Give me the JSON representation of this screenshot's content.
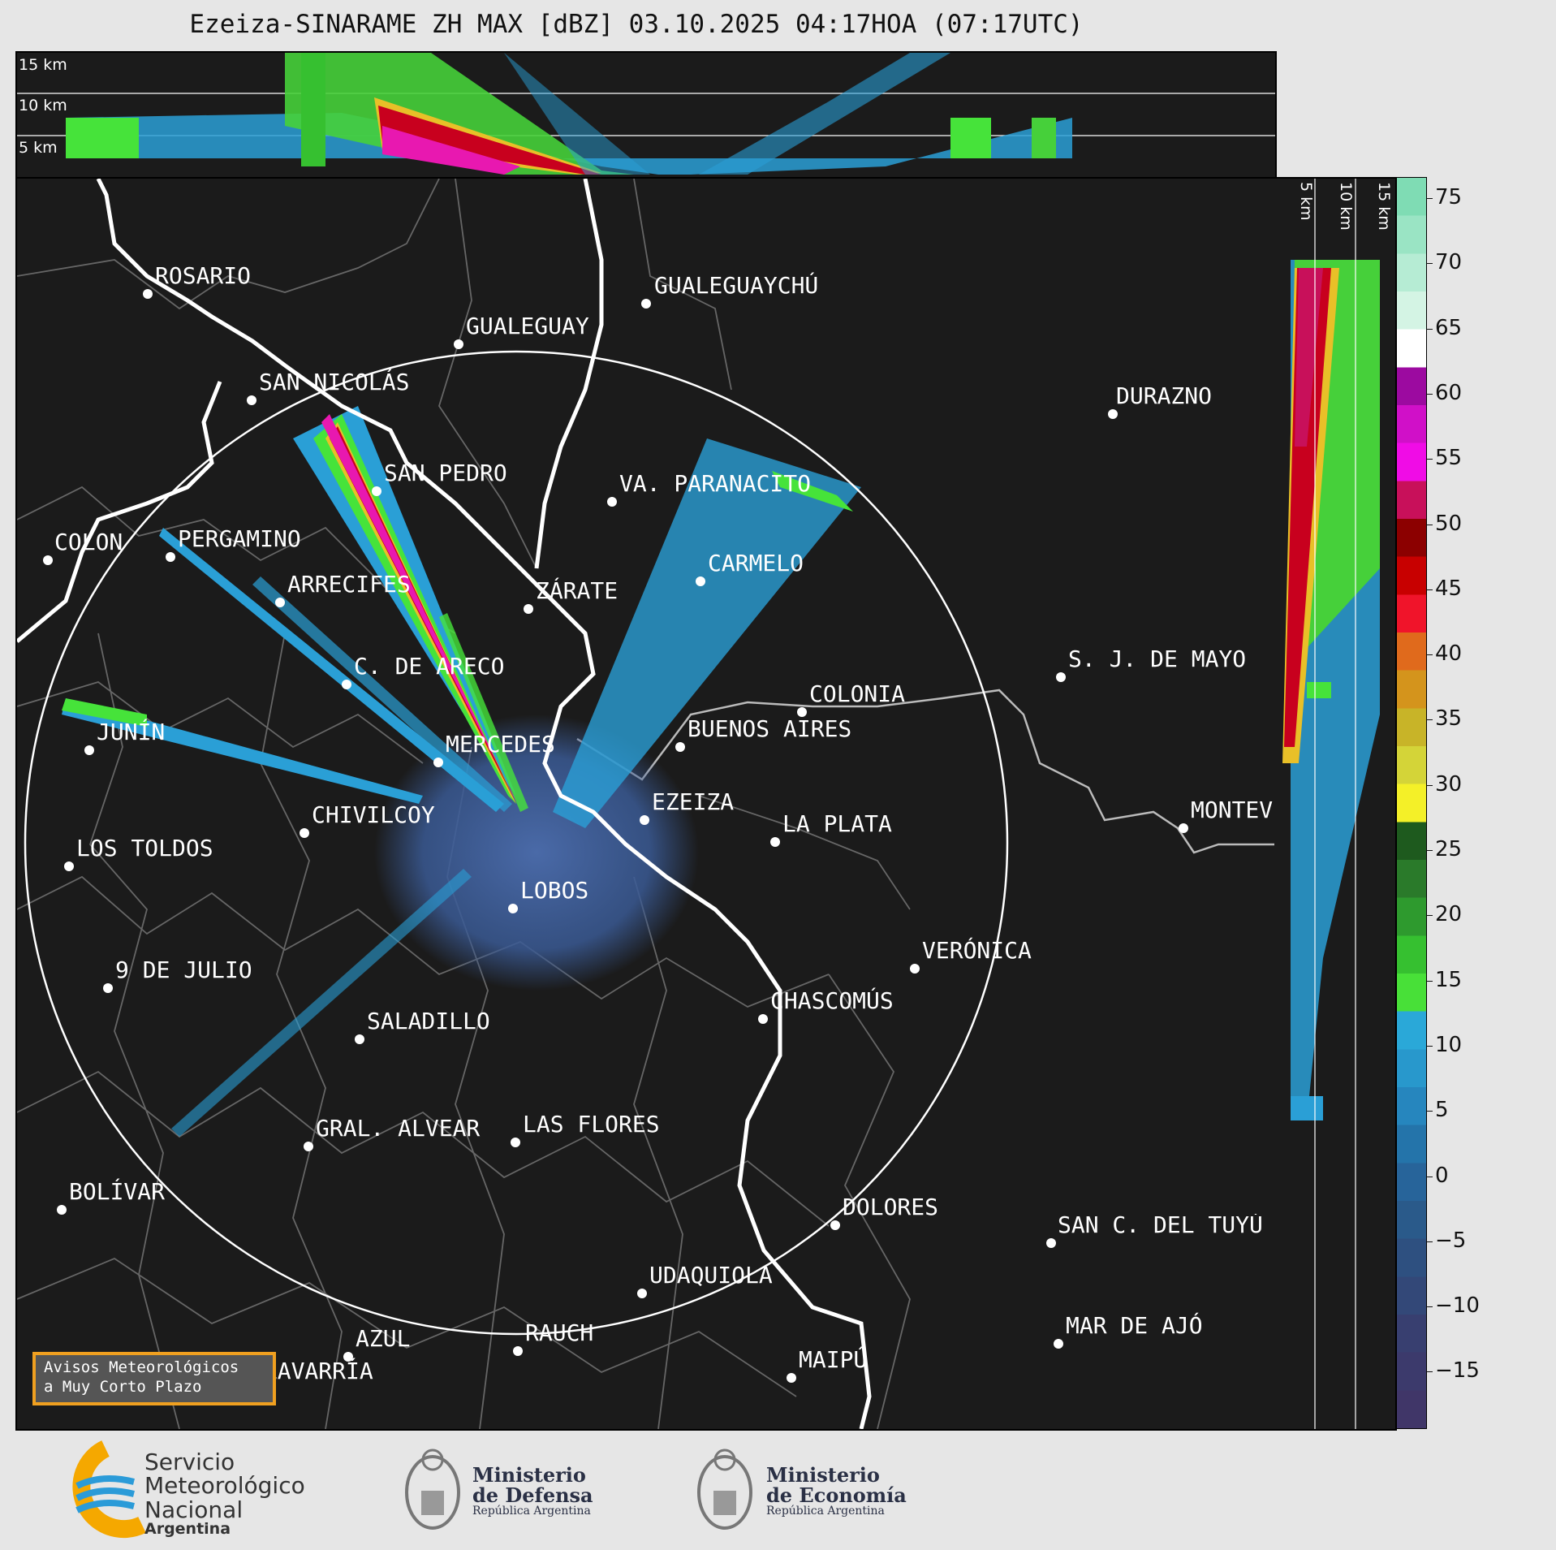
{
  "title": "Ezeiza-SINARAME ZH MAX [dBZ] 03.10.2025 04:17HOA (07:17UTC)",
  "top_panel": {
    "height_labels": [
      "15 km",
      "10 km",
      "5 km"
    ]
  },
  "side_panel": {
    "height_labels": [
      "5 km",
      "10 km",
      "15 km"
    ]
  },
  "colorbar": {
    "ticks": [
      "75",
      "70",
      "65",
      "60",
      "55",
      "50",
      "45",
      "40",
      "35",
      "30",
      "25",
      "20",
      "15",
      "10",
      "5",
      "0",
      "−5",
      "−10",
      "−15"
    ],
    "colors_top_to_bottom": [
      "#7fdcb4",
      "#9ae4c4",
      "#b6ecd4",
      "#d4f4e4",
      "#ffffff",
      "#9c0aa0",
      "#d010c8",
      "#f00ce6",
      "#c8105a",
      "#8c0000",
      "#c80000",
      "#f0142a",
      "#e06a1c",
      "#d4941c",
      "#c8b428",
      "#d4d438",
      "#f4f028",
      "#1e5a1e",
      "#2a7a2a",
      "#2e9a2e",
      "#36c030",
      "#48e038",
      "#2aa8d8",
      "#2898cc",
      "#2686be",
      "#2474aa",
      "#27649a",
      "#2a5a8a",
      "#2e5080",
      "#334878",
      "#383f70",
      "#3c3a6c",
      "#403668"
    ]
  },
  "cities": [
    {
      "name": "ROSARIO"
    },
    {
      "name": "GUALEGUAYCHÚ"
    },
    {
      "name": "GUALEGUAY"
    },
    {
      "name": "SAN NICOLÁS"
    },
    {
      "name": "DURAZNO"
    },
    {
      "name": "SAN PEDRO"
    },
    {
      "name": "VA. PARANACITO"
    },
    {
      "name": "COLON"
    },
    {
      "name": "PERGAMINO"
    },
    {
      "name": "CARMELO"
    },
    {
      "name": "ARRECIFES"
    },
    {
      "name": "ZÁRATE"
    },
    {
      "name": "S. J. DE MAYO"
    },
    {
      "name": "C. DE ARECO"
    },
    {
      "name": "COLONIA"
    },
    {
      "name": "JUNÍN"
    },
    {
      "name": "BUENOS AIRES"
    },
    {
      "name": "MERCEDES"
    },
    {
      "name": "EZEIZA"
    },
    {
      "name": "MONTEVIDEO"
    },
    {
      "name": "CHIVILCOY"
    },
    {
      "name": "LA PLATA"
    },
    {
      "name": "LOS TOLDOS"
    },
    {
      "name": "LOBOS"
    },
    {
      "name": "VERÓNICA"
    },
    {
      "name": "9 DE JULIO"
    },
    {
      "name": "CHASCOMÚS"
    },
    {
      "name": "SALADILLO"
    },
    {
      "name": "GRAL. ALVEAR"
    },
    {
      "name": "LAS FLORES"
    },
    {
      "name": "BOLÍVAR"
    },
    {
      "name": "DOLORES"
    },
    {
      "name": "SAN C. DEL TUYÚ"
    },
    {
      "name": "UDAQUIOLA"
    },
    {
      "name": "MAR DE AJÓ"
    },
    {
      "name": "AZUL"
    },
    {
      "name": "RAUCH"
    },
    {
      "name": "OLAVARRÍA"
    },
    {
      "name": "MAIPÚ"
    }
  ],
  "notice": {
    "line1": "Avisos Meteorológicos",
    "line2": "a Muy Corto Plazo"
  },
  "logos": {
    "smn": [
      "Servicio",
      "Meteorológico",
      "Nacional",
      "Argentina"
    ],
    "defensa": [
      "Ministerio",
      "de Defensa",
      "República Argentina"
    ],
    "economia": [
      "Ministerio",
      "de Economía",
      "República Argentina"
    ]
  }
}
